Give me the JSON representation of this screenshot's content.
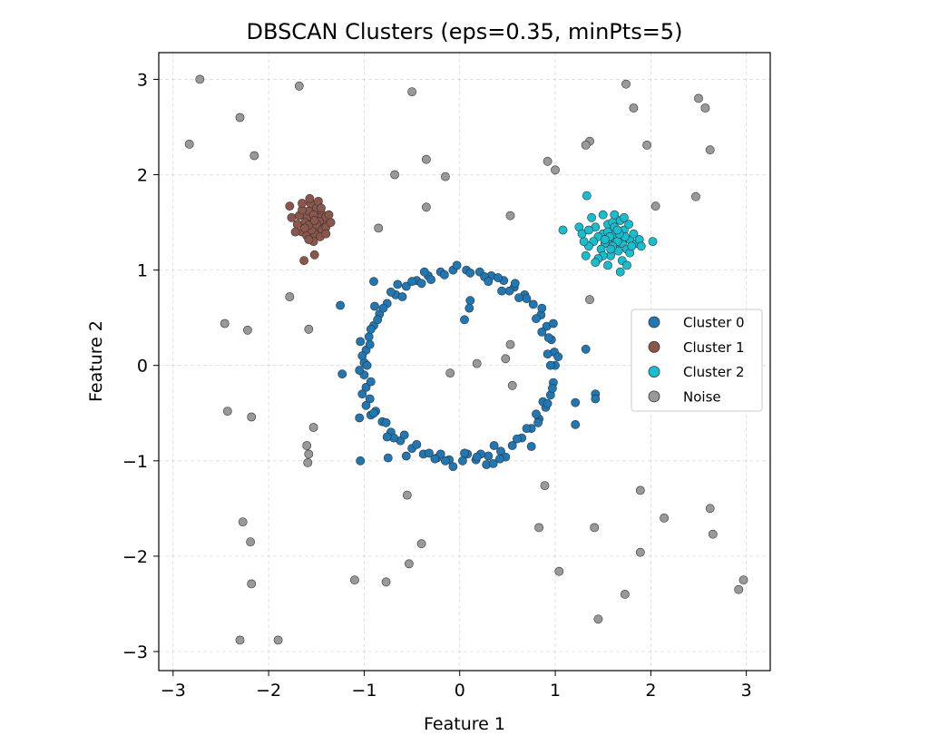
{
  "chart_data": {
    "type": "scatter",
    "title": "DBSCAN Clusters (eps=0.35, minPts=5)",
    "xlabel": "Feature 1",
    "ylabel": "Feature 2",
    "xlim": [
      -3.15,
      3.25
    ],
    "ylim": [
      -3.2,
      3.28
    ],
    "xticks": [
      -3,
      -2,
      -1,
      0,
      1,
      2,
      3
    ],
    "yticks": [
      -3,
      -2,
      -1,
      0,
      1,
      2,
      3
    ],
    "xtick_labels": [
      "−3",
      "−2",
      "−1",
      "0",
      "1",
      "2",
      "3"
    ],
    "ytick_labels": [
      "−3",
      "−2",
      "−1",
      "0",
      "1",
      "2",
      "3"
    ],
    "grid": true,
    "legend_position": "center-right",
    "series": [
      {
        "name": "Cluster 0",
        "color": "#1f77b4",
        "points": [
          [
            1.0,
            0.0
          ],
          [
            0.99,
            0.14
          ],
          [
            0.96,
            0.27
          ],
          [
            0.91,
            0.41
          ],
          [
            0.85,
            0.53
          ],
          [
            0.77,
            0.64
          ],
          [
            0.68,
            0.74
          ],
          [
            0.57,
            0.82
          ],
          [
            0.46,
            0.89
          ],
          [
            0.33,
            0.94
          ],
          [
            0.21,
            0.98
          ],
          [
            0.07,
            1.0
          ],
          [
            -0.07,
            1.0
          ],
          [
            -0.2,
            0.98
          ],
          [
            -0.33,
            0.94
          ],
          [
            -0.45,
            0.89
          ],
          [
            -0.56,
            0.83
          ],
          [
            -0.67,
            0.74
          ],
          [
            -0.76,
            0.65
          ],
          [
            -0.84,
            0.54
          ],
          [
            -0.9,
            0.42
          ],
          [
            -0.95,
            0.3
          ],
          [
            -0.98,
            0.16
          ],
          [
            -1.0,
            0.03
          ],
          [
            -1.0,
            -0.1
          ],
          [
            -0.98,
            -0.23
          ],
          [
            -0.94,
            -0.35
          ],
          [
            -0.88,
            -0.48
          ],
          [
            -0.81,
            -0.59
          ],
          [
            -0.72,
            -0.7
          ],
          [
            -0.62,
            -0.79
          ],
          [
            -0.5,
            -0.87
          ],
          [
            -0.38,
            -0.93
          ],
          [
            -0.24,
            -0.97
          ],
          [
            -0.11,
            -0.99
          ],
          [
            0.03,
            -1.0
          ],
          [
            0.17,
            -0.99
          ],
          [
            0.3,
            -0.95
          ],
          [
            0.43,
            -0.9
          ],
          [
            0.55,
            -0.84
          ],
          [
            0.65,
            -0.76
          ],
          [
            0.75,
            -0.66
          ],
          [
            0.83,
            -0.56
          ],
          [
            0.9,
            -0.44
          ],
          [
            0.95,
            -0.31
          ],
          [
            0.98,
            -0.18
          ],
          [
            0.92,
            0.12
          ],
          [
            0.95,
            0.0
          ],
          [
            0.86,
            0.35
          ],
          [
            0.8,
            0.49
          ],
          [
            0.7,
            0.7
          ],
          [
            0.62,
            0.71
          ],
          [
            0.52,
            0.78
          ],
          [
            0.4,
            0.92
          ],
          [
            0.26,
            0.93
          ],
          [
            0.11,
            0.97
          ],
          [
            -0.03,
            1.05
          ],
          [
            -0.16,
            0.95
          ],
          [
            -0.3,
            0.9
          ],
          [
            -0.4,
            0.86
          ],
          [
            -0.5,
            0.88
          ],
          [
            -0.6,
            0.72
          ],
          [
            -0.72,
            0.77
          ],
          [
            -0.8,
            0.6
          ],
          [
            -0.86,
            0.48
          ],
          [
            -0.93,
            0.38
          ],
          [
            -1.04,
            0.25
          ],
          [
            -1.02,
            0.1
          ],
          [
            -1.05,
            -0.05
          ],
          [
            -0.93,
            -0.17
          ],
          [
            -1.02,
            -0.3
          ],
          [
            -0.98,
            -0.42
          ],
          [
            -0.93,
            -0.52
          ],
          [
            -0.77,
            -0.6
          ],
          [
            -0.69,
            -0.76
          ],
          [
            -0.58,
            -0.73
          ],
          [
            -0.45,
            -0.83
          ],
          [
            -0.32,
            -0.92
          ],
          [
            -0.2,
            -0.93
          ],
          [
            -0.07,
            -1.06
          ],
          [
            0.08,
            -0.93
          ],
          [
            0.22,
            -0.93
          ],
          [
            0.36,
            -0.84
          ],
          [
            0.48,
            -0.96
          ],
          [
            0.6,
            -0.77
          ],
          [
            0.7,
            -0.66
          ],
          [
            0.8,
            -0.51
          ],
          [
            0.87,
            -0.38
          ],
          [
            0.97,
            -0.24
          ],
          [
            1.03,
            0.09
          ],
          [
            -0.97,
            0.0
          ],
          [
            0.58,
            0.86
          ],
          [
            -0.37,
            0.98
          ],
          [
            0.28,
            -1.04
          ],
          [
            -0.56,
            -0.95
          ],
          [
            0.98,
            0.44
          ],
          [
            -0.76,
            -0.75
          ],
          [
            0.86,
            0.6
          ],
          [
            -0.89,
            0.62
          ],
          [
            0.11,
            0.68
          ],
          [
            0.1,
            0.6
          ],
          [
            0.05,
            0.48
          ],
          [
            -1.25,
            0.63
          ],
          [
            -1.23,
            -0.09
          ],
          [
            -1.05,
            -0.55
          ],
          [
            -1.04,
            -1.0
          ],
          [
            -0.9,
            0.88
          ],
          [
            -0.75,
            -0.97
          ],
          [
            0.42,
            -0.98
          ],
          [
            -0.15,
            -1.0
          ],
          [
            0.05,
            -0.92
          ],
          [
            0.75,
            -0.85
          ],
          [
            -0.9,
            -0.5
          ],
          [
            0.92,
            -0.4
          ],
          [
            1.32,
            0.17
          ],
          [
            1.42,
            -0.3
          ],
          [
            1.42,
            -0.35
          ],
          [
            1.21,
            -0.39
          ],
          [
            1.21,
            -0.62
          ],
          [
            0.35,
            -1.03
          ],
          [
            -0.26,
            -0.98
          ],
          [
            0.18,
            -0.96
          ],
          [
            -0.65,
            0.85
          ],
          [
            0.44,
            0.78
          ],
          [
            0.3,
            0.88
          ],
          [
            -0.94,
            0.22
          ],
          [
            0.82,
            -0.6
          ],
          [
            0.93,
            0.29
          ]
        ]
      },
      {
        "name": "Cluster 1",
        "color": "#8c564b",
        "points": [
          [
            -1.55,
            1.5
          ],
          [
            -1.6,
            1.55
          ],
          [
            -1.5,
            1.45
          ],
          [
            -1.45,
            1.6
          ],
          [
            -1.65,
            1.4
          ],
          [
            -1.58,
            1.62
          ],
          [
            -1.42,
            1.48
          ],
          [
            -1.52,
            1.38
          ],
          [
            -1.62,
            1.5
          ],
          [
            -1.48,
            1.55
          ],
          [
            -1.56,
            1.7
          ],
          [
            -1.68,
            1.57
          ],
          [
            -1.4,
            1.56
          ],
          [
            -1.5,
            1.65
          ],
          [
            -1.44,
            1.42
          ],
          [
            -1.6,
            1.36
          ],
          [
            -1.55,
            1.42
          ],
          [
            -1.47,
            1.51
          ],
          [
            -1.65,
            1.63
          ],
          [
            -1.53,
            1.58
          ],
          [
            -1.58,
            1.47
          ],
          [
            -1.62,
            1.44
          ],
          [
            -1.46,
            1.35
          ],
          [
            -1.4,
            1.45
          ],
          [
            -1.35,
            1.5
          ],
          [
            -1.37,
            1.58
          ],
          [
            -1.7,
            1.48
          ],
          [
            -1.72,
            1.4
          ],
          [
            -1.53,
            1.3
          ],
          [
            -1.58,
            1.32
          ],
          [
            -1.48,
            1.72
          ],
          [
            -1.57,
            1.75
          ],
          [
            -1.65,
            1.7
          ],
          [
            -1.76,
            1.55
          ],
          [
            -1.78,
            1.67
          ],
          [
            -1.5,
            1.48
          ],
          [
            -1.45,
            1.65
          ],
          [
            -1.52,
            1.52
          ],
          [
            -1.4,
            1.38
          ],
          [
            -1.63,
            1.1
          ],
          [
            -1.52,
            1.16
          ]
        ]
      },
      {
        "name": "Cluster 2",
        "color": "#17becf",
        "points": [
          [
            1.6,
            1.35
          ],
          [
            1.55,
            1.3
          ],
          [
            1.65,
            1.4
          ],
          [
            1.7,
            1.28
          ],
          [
            1.5,
            1.38
          ],
          [
            1.58,
            1.45
          ],
          [
            1.68,
            1.34
          ],
          [
            1.62,
            1.25
          ],
          [
            1.72,
            1.42
          ],
          [
            1.52,
            1.28
          ],
          [
            1.45,
            1.35
          ],
          [
            1.78,
            1.32
          ],
          [
            1.66,
            1.2
          ],
          [
            1.55,
            1.48
          ],
          [
            1.48,
            1.22
          ],
          [
            1.6,
            1.5
          ],
          [
            1.75,
            1.22
          ],
          [
            1.82,
            1.38
          ],
          [
            1.4,
            1.3
          ],
          [
            1.58,
            1.15
          ],
          [
            1.68,
            1.52
          ],
          [
            1.42,
            1.45
          ],
          [
            1.85,
            1.28
          ],
          [
            1.5,
            1.15
          ],
          [
            1.7,
            1.1
          ],
          [
            1.62,
            1.38
          ],
          [
            1.55,
            1.4
          ],
          [
            1.65,
            1.3
          ],
          [
            1.6,
            1.25
          ],
          [
            1.73,
            1.35
          ],
          [
            1.45,
            1.12
          ],
          [
            1.42,
            1.08
          ],
          [
            1.35,
            1.25
          ],
          [
            1.3,
            1.3
          ],
          [
            1.25,
            1.45
          ],
          [
            1.28,
            1.38
          ],
          [
            1.35,
            1.42
          ],
          [
            1.5,
            1.58
          ],
          [
            1.62,
            1.58
          ],
          [
            1.72,
            1.55
          ],
          [
            1.78,
            1.18
          ],
          [
            1.88,
            1.32
          ],
          [
            1.9,
            1.25
          ],
          [
            1.75,
            1.05
          ],
          [
            1.68,
            0.98
          ],
          [
            1.55,
            1.05
          ],
          [
            1.32,
            1.15
          ],
          [
            1.38,
            1.55
          ],
          [
            1.62,
            1.45
          ],
          [
            1.57,
            1.35
          ],
          [
            1.67,
            1.38
          ],
          [
            1.52,
            1.32
          ],
          [
            1.77,
            1.48
          ],
          [
            1.08,
            1.42
          ],
          [
            1.33,
            1.78
          ],
          [
            2.02,
            1.3
          ],
          [
            1.65,
            1.42
          ],
          [
            1.58,
            1.22
          ],
          [
            1.8,
            1.25
          ]
        ]
      },
      {
        "name": "Noise",
        "color": "#999999",
        "points": [
          [
            -2.72,
            3.0
          ],
          [
            -2.83,
            2.32
          ],
          [
            -2.3,
            2.6
          ],
          [
            -2.15,
            2.2
          ],
          [
            -1.68,
            2.93
          ],
          [
            -0.5,
            2.87
          ],
          [
            -0.35,
            2.16
          ],
          [
            -0.68,
            2.0
          ],
          [
            -0.15,
            1.98
          ],
          [
            -0.85,
            1.44
          ],
          [
            -0.35,
            1.66
          ],
          [
            0.53,
            1.57
          ],
          [
            0.92,
            2.14
          ],
          [
            1.0,
            2.05
          ],
          [
            1.36,
            2.35
          ],
          [
            1.32,
            2.31
          ],
          [
            1.74,
            2.95
          ],
          [
            1.82,
            2.7
          ],
          [
            1.96,
            2.31
          ],
          [
            2.5,
            2.8
          ],
          [
            2.57,
            2.7
          ],
          [
            2.62,
            2.26
          ],
          [
            2.47,
            1.77
          ],
          [
            2.05,
            1.67
          ],
          [
            1.36,
            0.69
          ],
          [
            -1.78,
            0.72
          ],
          [
            -2.46,
            0.44
          ],
          [
            -2.22,
            0.37
          ],
          [
            -1.58,
            0.38
          ],
          [
            -2.43,
            -0.48
          ],
          [
            -2.18,
            -0.54
          ],
          [
            -1.53,
            -0.65
          ],
          [
            -1.6,
            -0.84
          ],
          [
            -1.58,
            -0.93
          ],
          [
            -1.59,
            -1.02
          ],
          [
            0.53,
            0.22
          ],
          [
            0.48,
            0.07
          ],
          [
            0.18,
            0.02
          ],
          [
            -0.1,
            -0.08
          ],
          [
            0.55,
            -0.21
          ],
          [
            -0.55,
            -1.36
          ],
          [
            0.89,
            -1.26
          ],
          [
            1.89,
            -1.31
          ],
          [
            2.62,
            -1.5
          ],
          [
            -2.27,
            -1.64
          ],
          [
            0.83,
            -1.7
          ],
          [
            1.41,
            -1.7
          ],
          [
            2.14,
            -1.6
          ],
          [
            2.65,
            -1.77
          ],
          [
            -2.19,
            -1.85
          ],
          [
            -0.4,
            -1.87
          ],
          [
            1.89,
            -1.96
          ],
          [
            -0.53,
            -2.08
          ],
          [
            1.04,
            -2.16
          ],
          [
            -2.18,
            -2.29
          ],
          [
            -1.1,
            -2.25
          ],
          [
            -0.77,
            -2.27
          ],
          [
            2.97,
            -2.25
          ],
          [
            2.92,
            -2.35
          ],
          [
            1.73,
            -2.4
          ],
          [
            1.45,
            -2.66
          ],
          [
            -2.3,
            -2.88
          ],
          [
            -1.9,
            -2.88
          ]
        ]
      }
    ]
  }
}
